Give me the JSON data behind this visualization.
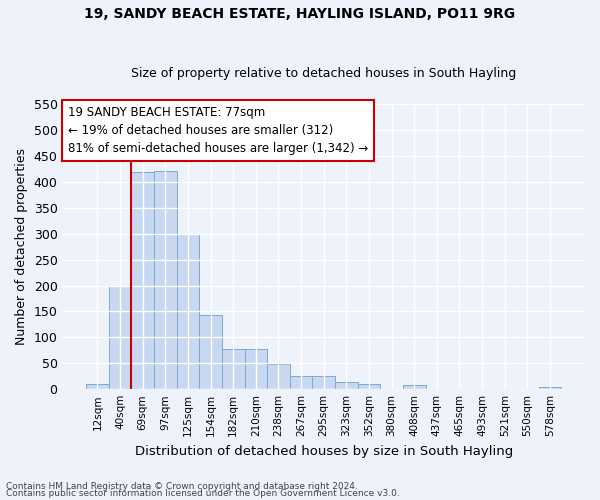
{
  "title_line1": "19, SANDY BEACH ESTATE, HAYLING ISLAND, PO11 9RG",
  "title_line2": "Size of property relative to detached houses in South Hayling",
  "xlabel": "Distribution of detached houses by size in South Hayling",
  "ylabel": "Number of detached properties",
  "bin_labels": [
    "12sqm",
    "40sqm",
    "69sqm",
    "97sqm",
    "125sqm",
    "154sqm",
    "182sqm",
    "210sqm",
    "238sqm",
    "267sqm",
    "295sqm",
    "323sqm",
    "352sqm",
    "380sqm",
    "408sqm",
    "437sqm",
    "465sqm",
    "493sqm",
    "521sqm",
    "550sqm",
    "578sqm"
  ],
  "bar_values": [
    10,
    200,
    420,
    422,
    300,
    143,
    78,
    78,
    48,
    25,
    25,
    13,
    10,
    0,
    8,
    0,
    0,
    0,
    0,
    0,
    5
  ],
  "bar_color": "#c8d8f0",
  "bar_edge_color": "#7aaad0",
  "ylim": [
    0,
    550
  ],
  "yticks": [
    0,
    50,
    100,
    150,
    200,
    250,
    300,
    350,
    400,
    450,
    500,
    550
  ],
  "vline_bin_index": 2,
  "annotation_text_line1": "19 SANDY BEACH ESTATE: 77sqm",
  "annotation_text_line2": "← 19% of detached houses are smaller (312)",
  "annotation_text_line3": "81% of semi-detached houses are larger (1,342) →",
  "annotation_box_facecolor": "#ffffff",
  "annotation_box_edgecolor": "#cc0000",
  "vline_color": "#cc0000",
  "footer_line1": "Contains HM Land Registry data © Crown copyright and database right 2024.",
  "footer_line2": "Contains public sector information licensed under the Open Government Licence v3.0.",
  "background_color": "#eef2fb",
  "grid_color": "#ffffff"
}
